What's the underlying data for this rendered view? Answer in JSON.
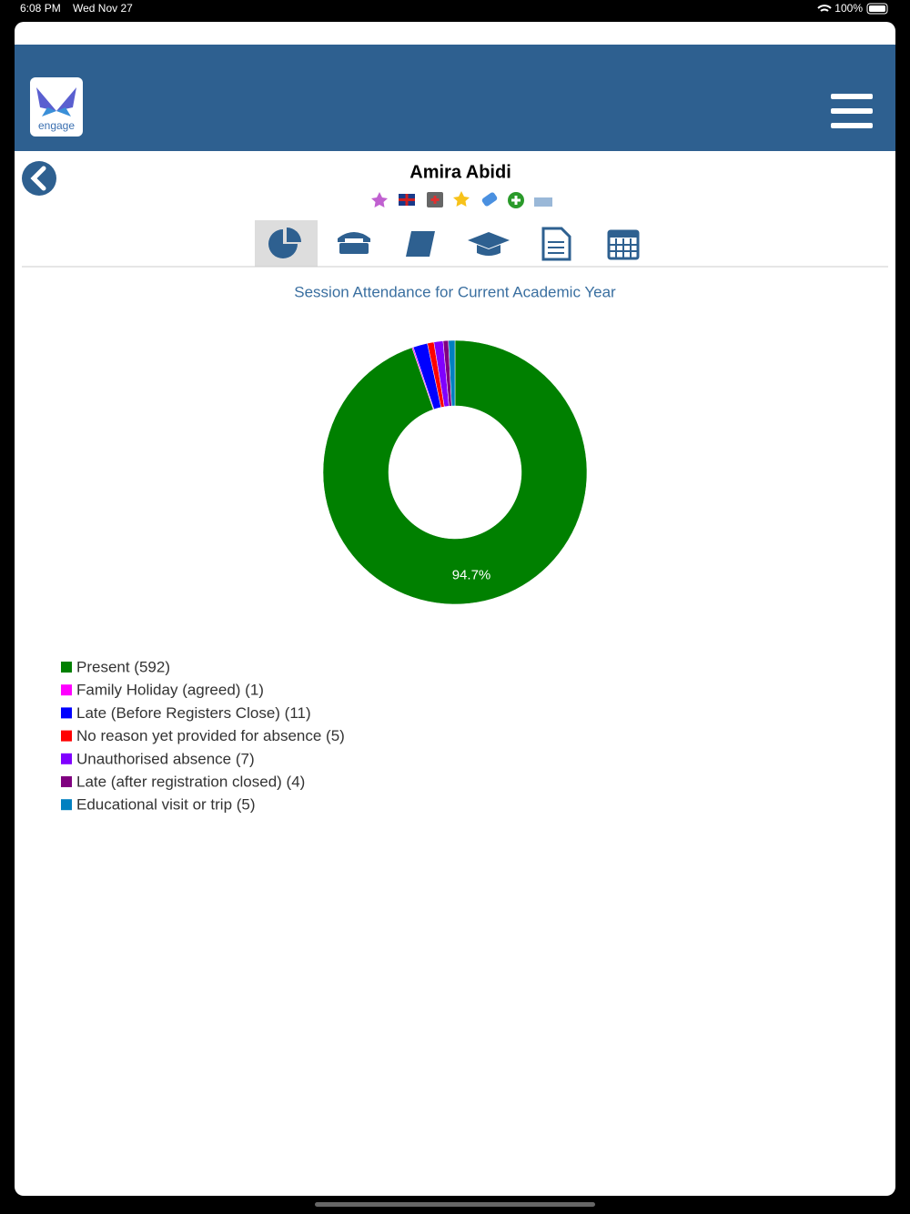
{
  "status_bar": {
    "time": "6:08 PM",
    "date": "Wed Nov 27",
    "battery": "100%"
  },
  "header": {
    "logo_text": "engage"
  },
  "student": {
    "name": "Amira Abidi"
  },
  "chart_data": {
    "type": "pie",
    "title": "Session Attendance for Current Academic Year",
    "categories": [
      "Present (592)",
      "Family Holiday (agreed) (1)",
      "Late (Before Registers Close) (11)",
      "No reason yet provided for absence (5)",
      "Unauthorised absence (7)",
      "Late (after registration closed) (4)",
      "Educational visit or trip (5)"
    ],
    "values": [
      592,
      1,
      11,
      5,
      7,
      4,
      5
    ],
    "value_labels": [
      "94.7%",
      null,
      null,
      null,
      null,
      null,
      null
    ],
    "colors": [
      "#008000",
      "#ff00ff",
      "#0000ff",
      "#ff0000",
      "#8000ff",
      "#800080",
      "#0080c0"
    ],
    "donut": true,
    "legend": "bottom-left"
  }
}
